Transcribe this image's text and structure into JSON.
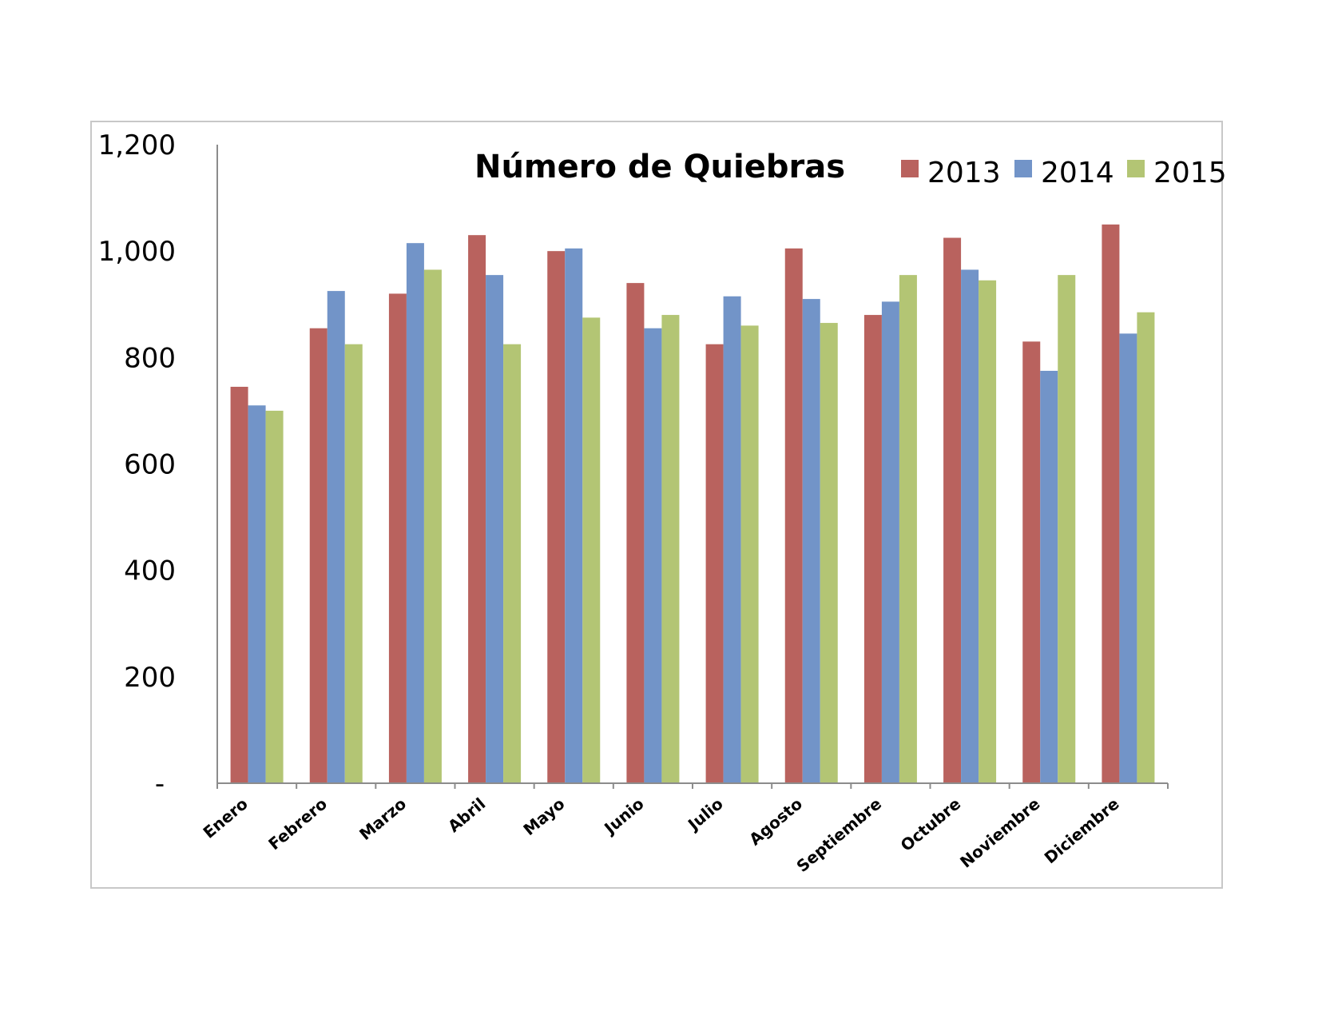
{
  "chart_data": {
    "type": "bar",
    "title": "Número de Quiebras",
    "categories": [
      "Enero",
      "Febrero",
      "Marzo",
      "Abril",
      "Mayo",
      "Junio",
      "Julio",
      "Agosto",
      "Septiembre",
      "Octubre",
      "Noviembre",
      "Diciembre"
    ],
    "series": [
      {
        "name": "2013",
        "color": "#b9625e",
        "values": [
          745,
          855,
          920,
          1030,
          1000,
          940,
          825,
          1005,
          880,
          1025,
          830,
          1050
        ]
      },
      {
        "name": "2014",
        "color": "#7294c8",
        "values": [
          710,
          925,
          1015,
          955,
          1005,
          855,
          915,
          910,
          905,
          965,
          775,
          845
        ]
      },
      {
        "name": "2015",
        "color": "#b3c574",
        "values": [
          700,
          825,
          965,
          825,
          875,
          880,
          860,
          865,
          955,
          945,
          955,
          885
        ]
      }
    ],
    "yticks": [
      "-",
      "200",
      "400",
      "600",
      "800",
      "1,000",
      "1,200"
    ],
    "ylim": [
      0,
      1200
    ],
    "legend_position": "top-right",
    "grid": false
  }
}
